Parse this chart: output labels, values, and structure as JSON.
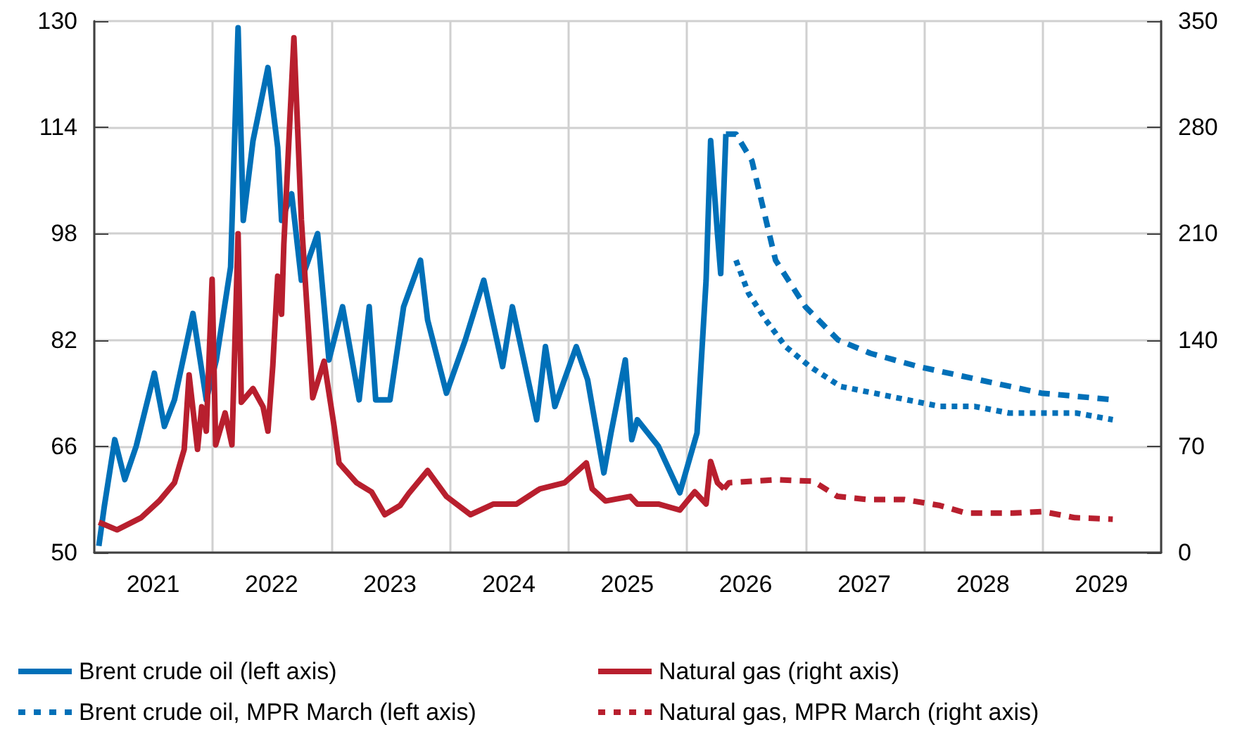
{
  "chart_data": {
    "type": "line",
    "legend": "bottom",
    "grid": true,
    "marker": "none",
    "xlim": [
      "2021-01-01",
      "2030-01-01"
    ],
    "xticks": [
      {
        "value": "2021-01-01",
        "label": null
      },
      {
        "value": "2022-01-01",
        "label": null
      },
      {
        "value": "2023-01-01",
        "label": null
      },
      {
        "value": "2024-01-01",
        "label": null
      },
      {
        "value": "2025-01-01",
        "label": null
      },
      {
        "value": "2026-01-01",
        "label": null
      },
      {
        "value": "2027-01-01",
        "label": null
      },
      {
        "value": "2028-01-01",
        "label": null
      },
      {
        "value": "2029-01-01",
        "label": null
      },
      {
        "value": "2030-01-01",
        "label": null
      },
      {
        "value": "2021-07-01",
        "label": "2021"
      },
      {
        "value": "2022-07-01",
        "label": "2022"
      },
      {
        "value": "2023-07-01",
        "label": "2023"
      },
      {
        "value": "2024-07-01",
        "label": "2024"
      },
      {
        "value": "2025-07-01",
        "label": "2025"
      },
      {
        "value": "2026-07-01",
        "label": "2026"
      },
      {
        "value": "2027-07-01",
        "label": "2027"
      },
      {
        "value": "2028-07-01",
        "label": "2028"
      },
      {
        "value": "2029-07-01",
        "label": "2029"
      }
    ],
    "ylim": [
      50,
      130
    ],
    "yticks": [
      50,
      66,
      82,
      98,
      114,
      130
    ],
    "y2lim": [
      0,
      350
    ],
    "y2ticks": [
      0,
      70,
      140,
      210,
      280,
      350
    ],
    "series": [
      {
        "name": "Brent crude oil (left axis)",
        "color": "#0070b8",
        "line_style": "solid",
        "x": [
          "2021-01-15",
          "2021-02-01",
          "2021-03-05",
          "2021-04-05",
          "2021-05-10",
          "2021-07-05",
          "2021-08-05",
          "2021-09-05",
          "2021-11-01",
          "2021-12-12",
          "2022-01-12",
          "2022-02-25",
          "2022-03-20",
          "2022-04-05",
          "2022-05-05",
          "2022-06-20",
          "2022-07-20",
          "2022-08-01",
          "2022-09-01",
          "2022-10-01",
          "2022-11-20",
          "2022-12-25",
          "2023-02-05",
          "2023-03-28",
          "2023-04-28",
          "2023-05-18",
          "2023-07-01",
          "2023-08-12",
          "2023-10-03",
          "2023-10-25",
          "2023-12-22",
          "2024-02-18",
          "2024-04-15",
          "2024-06-12",
          "2024-07-12",
          "2024-09-25",
          "2024-10-22",
          "2024-11-20",
          "2025-01-25",
          "2025-03-01",
          "2025-04-20",
          "2025-05-12",
          "2025-06-25",
          "2025-07-15",
          "2025-08-01",
          "2025-10-05",
          "2025-12-10",
          "2026-02-01",
          "2026-03-01",
          "2026-03-15",
          "2026-04-05",
          "2026-04-15",
          "2026-05-01"
        ],
        "values": [
          51,
          57,
          67,
          61,
          66,
          77,
          69,
          73,
          86,
          73,
          79,
          93,
          129,
          100,
          112,
          123,
          111,
          100,
          104,
          91,
          98,
          79,
          87,
          73,
          87,
          73,
          73,
          87,
          94,
          85,
          74,
          82,
          91,
          78,
          87,
          70,
          81,
          72,
          81,
          76,
          62,
          68,
          79,
          67,
          70,
          66,
          59,
          68,
          91,
          112,
          98,
          92,
          113
        ]
      },
      {
        "color": "#0070b8",
        "line_style": "dashed",
        "x": [
          "2026-05-01",
          "2026-06-01",
          "2026-07-20",
          "2026-10-01",
          "2027-01-01",
          "2027-04-12",
          "2027-07-20",
          "2027-12-15",
          "2028-06-20",
          "2028-12-28",
          "2029-08-10"
        ],
        "values": [
          113,
          113,
          109,
          94,
          87,
          82,
          80,
          78,
          76,
          74,
          73
        ]
      },
      {
        "name": "Brent crude oil, MPR March (left axis)",
        "color": "#0070b8",
        "line_style": "dotted",
        "x": [
          "2026-06-01",
          "2026-07-10",
          "2026-09-01",
          "2026-11-01",
          "2027-01-15",
          "2027-04-20",
          "2027-08-01",
          "2027-11-10",
          "2028-02-20",
          "2028-06-05",
          "2028-09-20",
          "2029-01-01",
          "2029-04-15",
          "2029-08-05"
        ],
        "values": [
          94,
          89,
          85,
          81,
          78,
          75,
          74,
          73,
          72,
          72,
          71,
          71,
          71,
          70
        ]
      },
      {
        "name": "Natural gas (right axis)",
        "color": "#b81f2e",
        "axis": "y2",
        "line_style": "solid",
        "x": [
          "2021-01-15",
          "2021-03-12",
          "2021-05-25",
          "2021-07-20",
          "2021-09-05",
          "2021-10-05",
          "2021-10-20",
          "2021-11-15",
          "2021-11-28",
          "2021-12-12",
          "2021-12-30",
          "2022-01-10",
          "2022-02-08",
          "2022-03-01",
          "2022-03-20",
          "2022-03-30",
          "2022-05-05",
          "2022-06-05",
          "2022-06-20",
          "2022-07-05",
          "2022-07-20",
          "2022-08-01",
          "2022-08-08",
          "2022-09-08",
          "2022-10-01",
          "2022-11-05",
          "2022-12-10",
          "2023-01-10",
          "2023-01-25",
          "2023-03-20",
          "2023-05-05",
          "2023-06-15",
          "2023-08-01",
          "2023-08-28",
          "2023-10-25",
          "2023-12-22",
          "2024-03-05",
          "2024-05-15",
          "2024-07-25",
          "2024-10-05",
          "2024-12-20",
          "2025-02-25",
          "2025-03-15",
          "2025-04-25",
          "2025-07-10",
          "2025-08-01",
          "2025-10-05",
          "2025-12-10",
          "2026-01-25",
          "2026-03-01",
          "2026-03-15",
          "2026-04-05",
          "2026-04-25"
        ],
        "values": [
          20,
          15,
          23,
          34,
          46,
          68,
          117,
          68,
          96,
          80,
          180,
          71,
          92,
          71,
          210,
          99,
          108,
          96,
          80,
          123,
          182,
          157,
          203,
          339,
          219,
          102,
          126,
          83,
          59,
          46,
          40,
          25,
          31,
          39,
          54,
          37,
          25,
          32,
          32,
          42,
          46,
          59,
          42,
          34,
          37,
          32,
          32,
          28,
          40,
          32,
          60,
          46,
          42
        ]
      },
      {
        "color": "#b81f2e",
        "axis": "y2",
        "line_style": "dashed",
        "x": [
          "2026-04-25",
          "2026-05-10",
          "2026-10-05",
          "2027-01-25",
          "2027-04-10",
          "2027-07-10",
          "2027-11-01",
          "2028-02-20",
          "2028-05-10",
          "2028-10-01",
          "2029-01-01",
          "2029-04-10",
          "2029-08-05"
        ],
        "values": [
          42,
          46,
          48,
          47,
          37,
          35,
          35,
          31,
          26,
          26,
          27,
          23,
          22
        ]
      },
      {
        "name": "Natural gas, MPR March (right axis)",
        "color": "#b81f2e",
        "axis": "y2",
        "line_style": "dotted"
      }
    ]
  }
}
